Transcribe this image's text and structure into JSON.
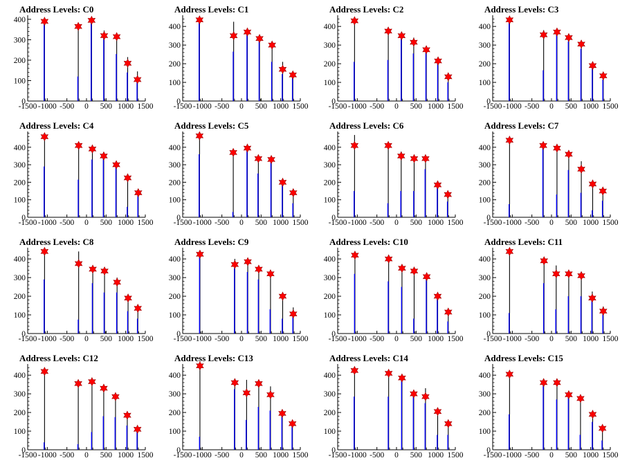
{
  "chart_data": [
    {
      "title": "Address Levels: C0",
      "type": "histogram",
      "xlim": [
        -1500,
        1500
      ],
      "ylim": [
        0,
        420
      ],
      "yticks": [
        0,
        100,
        200,
        300,
        400
      ],
      "xticks": [
        -1500,
        -1000,
        -500,
        0,
        500,
        1000,
        1500
      ],
      "peaks": [
        {
          "x": -1070,
          "y": 390,
          "black": 405,
          "blue": 395
        },
        {
          "x": -210,
          "y": 365,
          "black": 370,
          "blue": 120
        },
        {
          "x": 130,
          "y": 395,
          "black": 400,
          "blue": 385
        },
        {
          "x": 450,
          "y": 320,
          "black": 345,
          "blue": 320
        },
        {
          "x": 770,
          "y": 315,
          "black": 325,
          "blue": 230
        },
        {
          "x": 1050,
          "y": 185,
          "black": 215,
          "blue": 140
        },
        {
          "x": 1300,
          "y": 105,
          "black": 145,
          "blue": 120
        }
      ]
    },
    {
      "title": "Address Levels: C1",
      "type": "histogram",
      "xlim": [
        -1500,
        1500
      ],
      "ylim": [
        0,
        460
      ],
      "yticks": [
        0,
        100,
        200,
        300,
        400
      ],
      "xticks": [
        -1500,
        -1000,
        -500,
        0,
        500,
        1000,
        1500
      ],
      "peaks": [
        {
          "x": -1070,
          "y": 435,
          "black": 440,
          "blue": 435
        },
        {
          "x": -200,
          "y": 350,
          "black": 425,
          "blue": 265
        },
        {
          "x": 150,
          "y": 370,
          "black": 375,
          "blue": 365
        },
        {
          "x": 460,
          "y": 335,
          "black": 340,
          "blue": 320
        },
        {
          "x": 780,
          "y": 300,
          "black": 310,
          "blue": 210
        },
        {
          "x": 1050,
          "y": 170,
          "black": 210,
          "blue": 145
        },
        {
          "x": 1310,
          "y": 140,
          "black": 155,
          "blue": 140
        }
      ]
    },
    {
      "title": "Address Levels: C2",
      "type": "histogram",
      "xlim": [
        -1500,
        1500
      ],
      "ylim": [
        0,
        460
      ],
      "yticks": [
        0,
        100,
        200,
        300,
        400
      ],
      "xticks": [
        -1500,
        -1000,
        -500,
        0,
        500,
        1000,
        1500
      ],
      "peaks": [
        {
          "x": -1070,
          "y": 430,
          "black": 435,
          "blue": 210
        },
        {
          "x": -210,
          "y": 375,
          "black": 385,
          "blue": 220
        },
        {
          "x": 130,
          "y": 350,
          "black": 370,
          "blue": 340
        },
        {
          "x": 440,
          "y": 315,
          "black": 340,
          "blue": 255
        },
        {
          "x": 760,
          "y": 275,
          "black": 295,
          "blue": 260
        },
        {
          "x": 1060,
          "y": 215,
          "black": 220,
          "blue": 205
        },
        {
          "x": 1320,
          "y": 130,
          "black": 135,
          "blue": 100
        }
      ]
    },
    {
      "title": "Address Levels: C3",
      "type": "histogram",
      "xlim": [
        -1500,
        1500
      ],
      "ylim": [
        0,
        460
      ],
      "yticks": [
        0,
        100,
        200,
        300,
        400
      ],
      "xticks": [
        -1500,
        -1000,
        -500,
        0,
        500,
        1000,
        1500
      ],
      "peaks": [
        {
          "x": -1070,
          "y": 435,
          "black": 440,
          "blue": 430
        },
        {
          "x": -200,
          "y": 355,
          "black": 380,
          "blue": 165
        },
        {
          "x": 140,
          "y": 370,
          "black": 380,
          "blue": 360
        },
        {
          "x": 440,
          "y": 340,
          "black": 345,
          "blue": 320
        },
        {
          "x": 760,
          "y": 305,
          "black": 320,
          "blue": 280
        },
        {
          "x": 1050,
          "y": 190,
          "black": 195,
          "blue": 185
        },
        {
          "x": 1320,
          "y": 135,
          "black": 140,
          "blue": 115
        }
      ]
    },
    {
      "title": "Address Levels: C4",
      "type": "histogram",
      "xlim": [
        -1500,
        1500
      ],
      "ylim": [
        0,
        490
      ],
      "yticks": [
        0,
        100,
        200,
        300,
        400
      ],
      "xticks": [
        -1500,
        -1000,
        -500,
        0,
        500,
        1000,
        1500
      ],
      "peaks": [
        {
          "x": -1070,
          "y": 460,
          "black": 470,
          "blue": 290
        },
        {
          "x": -200,
          "y": 410,
          "black": 420,
          "blue": 215
        },
        {
          "x": 150,
          "y": 390,
          "black": 395,
          "blue": 330
        },
        {
          "x": 440,
          "y": 350,
          "black": 360,
          "blue": 345
        },
        {
          "x": 760,
          "y": 300,
          "black": 320,
          "blue": 290
        },
        {
          "x": 1050,
          "y": 225,
          "black": 230,
          "blue": 60
        },
        {
          "x": 1320,
          "y": 140,
          "black": 145,
          "blue": 130
        }
      ]
    },
    {
      "title": "Address Levels: C5",
      "type": "histogram",
      "xlim": [
        -1500,
        1500
      ],
      "ylim": [
        0,
        490
      ],
      "yticks": [
        0,
        100,
        200,
        300,
        400
      ],
      "xticks": [
        -1500,
        -1000,
        -500,
        0,
        500,
        1000,
        1500
      ],
      "peaks": [
        {
          "x": -1070,
          "y": 465,
          "black": 475,
          "blue": 360
        },
        {
          "x": -210,
          "y": 370,
          "black": 380,
          "blue": 30
        },
        {
          "x": 150,
          "y": 395,
          "black": 400,
          "blue": 390
        },
        {
          "x": 430,
          "y": 335,
          "black": 355,
          "blue": 250
        },
        {
          "x": 760,
          "y": 330,
          "black": 335,
          "blue": 325
        },
        {
          "x": 1050,
          "y": 200,
          "black": 205,
          "blue": 190
        },
        {
          "x": 1320,
          "y": 140,
          "black": 145,
          "blue": 80
        }
      ]
    },
    {
      "title": "Address Levels: C6",
      "type": "histogram",
      "xlim": [
        -1500,
        1500
      ],
      "ylim": [
        0,
        490
      ],
      "yticks": [
        0,
        100,
        200,
        300,
        400
      ],
      "xticks": [
        -1500,
        -1000,
        -500,
        0,
        500,
        1000,
        1500
      ],
      "peaks": [
        {
          "x": -1070,
          "y": 410,
          "black": 470,
          "blue": 150
        },
        {
          "x": -210,
          "y": 410,
          "black": 415,
          "blue": 80
        },
        {
          "x": 120,
          "y": 350,
          "black": 375,
          "blue": 150
        },
        {
          "x": 450,
          "y": 335,
          "black": 345,
          "blue": 150
        },
        {
          "x": 740,
          "y": 335,
          "black": 345,
          "blue": 275
        },
        {
          "x": 1050,
          "y": 185,
          "black": 190,
          "blue": 175
        },
        {
          "x": 1310,
          "y": 130,
          "black": 135,
          "blue": 90
        }
      ]
    },
    {
      "title": "Address Levels: C7",
      "type": "histogram",
      "xlim": [
        -1500,
        1500
      ],
      "ylim": [
        0,
        490
      ],
      "yticks": [
        0,
        100,
        200,
        300,
        400
      ],
      "xticks": [
        -1500,
        -1000,
        -500,
        0,
        500,
        1000,
        1500
      ],
      "peaks": [
        {
          "x": -1070,
          "y": 440,
          "black": 445,
          "blue": 75
        },
        {
          "x": -210,
          "y": 410,
          "black": 415,
          "blue": 405
        },
        {
          "x": 140,
          "y": 395,
          "black": 400,
          "blue": 130
        },
        {
          "x": 440,
          "y": 360,
          "black": 365,
          "blue": 270
        },
        {
          "x": 760,
          "y": 275,
          "black": 320,
          "blue": 140
        },
        {
          "x": 1050,
          "y": 190,
          "black": 200,
          "blue": 40
        },
        {
          "x": 1310,
          "y": 150,
          "black": 160,
          "blue": 95
        }
      ]
    },
    {
      "title": "Address Levels: C8",
      "type": "histogram",
      "xlim": [
        -1500,
        1500
      ],
      "ylim": [
        0,
        460
      ],
      "yticks": [
        0,
        100,
        200,
        300,
        400
      ],
      "xticks": [
        -1500,
        -1000,
        -500,
        0,
        500,
        1000,
        1500
      ],
      "peaks": [
        {
          "x": -1070,
          "y": 440,
          "black": 450,
          "blue": 290
        },
        {
          "x": -200,
          "y": 375,
          "black": 440,
          "blue": 75
        },
        {
          "x": 160,
          "y": 345,
          "black": 350,
          "blue": 270
        },
        {
          "x": 460,
          "y": 335,
          "black": 340,
          "blue": 220
        },
        {
          "x": 780,
          "y": 275,
          "black": 300,
          "blue": 220
        },
        {
          "x": 1060,
          "y": 190,
          "black": 195,
          "blue": 120
        },
        {
          "x": 1310,
          "y": 135,
          "black": 140,
          "blue": 80
        }
      ]
    },
    {
      "title": "Address Levels: C9",
      "type": "histogram",
      "xlim": [
        -1500,
        1500
      ],
      "ylim": [
        0,
        460
      ],
      "yticks": [
        0,
        100,
        200,
        300,
        400
      ],
      "xticks": [
        -1500,
        -1000,
        -500,
        0,
        500,
        1000,
        1500
      ],
      "peaks": [
        {
          "x": -1060,
          "y": 425,
          "black": 430,
          "blue": 420
        },
        {
          "x": -170,
          "y": 370,
          "black": 400,
          "blue": 350
        },
        {
          "x": 160,
          "y": 385,
          "black": 395,
          "blue": 330
        },
        {
          "x": 440,
          "y": 345,
          "black": 355,
          "blue": 290
        },
        {
          "x": 740,
          "y": 320,
          "black": 330,
          "blue": 130
        },
        {
          "x": 1050,
          "y": 200,
          "black": 205,
          "blue": 80
        },
        {
          "x": 1320,
          "y": 105,
          "black": 140,
          "blue": 110
        }
      ]
    },
    {
      "title": "Address Levels: C10",
      "type": "histogram",
      "xlim": [
        -1500,
        1500
      ],
      "ylim": [
        0,
        460
      ],
      "yticks": [
        0,
        100,
        200,
        300,
        400
      ],
      "xticks": [
        -1500,
        -1000,
        -500,
        0,
        500,
        1000,
        1500
      ],
      "peaks": [
        {
          "x": -1060,
          "y": 420,
          "black": 430,
          "blue": 320
        },
        {
          "x": -200,
          "y": 400,
          "black": 405,
          "blue": 280
        },
        {
          "x": 140,
          "y": 350,
          "black": 360,
          "blue": 250
        },
        {
          "x": 450,
          "y": 335,
          "black": 345,
          "blue": 80
        },
        {
          "x": 770,
          "y": 305,
          "black": 310,
          "blue": 300
        },
        {
          "x": 1050,
          "y": 200,
          "black": 205,
          "blue": 195
        },
        {
          "x": 1320,
          "y": 115,
          "black": 120,
          "blue": 65
        }
      ]
    },
    {
      "title": "Address Levels: C11",
      "type": "histogram",
      "xlim": [
        -1500,
        1500
      ],
      "ylim": [
        0,
        460
      ],
      "yticks": [
        0,
        100,
        200,
        300,
        400
      ],
      "xticks": [
        -1500,
        -1000,
        -500,
        0,
        500,
        1000,
        1500
      ],
      "peaks": [
        {
          "x": -1070,
          "y": 440,
          "black": 450,
          "blue": 110
        },
        {
          "x": -190,
          "y": 390,
          "black": 395,
          "blue": 270
        },
        {
          "x": 120,
          "y": 320,
          "black": 365,
          "blue": 130
        },
        {
          "x": 440,
          "y": 320,
          "black": 325,
          "blue": 200
        },
        {
          "x": 760,
          "y": 310,
          "black": 320,
          "blue": 200
        },
        {
          "x": 1040,
          "y": 190,
          "black": 225,
          "blue": 175
        },
        {
          "x": 1320,
          "y": 120,
          "black": 145,
          "blue": 135
        }
      ]
    },
    {
      "title": "Address Levels: C12",
      "type": "histogram",
      "xlim": [
        -1500,
        1500
      ],
      "ylim": [
        0,
        460
      ],
      "yticks": [
        0,
        100,
        200,
        300,
        400
      ],
      "xticks": [
        -1500,
        -1000,
        -500,
        0,
        500,
        1000,
        1500
      ],
      "peaks": [
        {
          "x": -1070,
          "y": 420,
          "black": 425,
          "blue": 40
        },
        {
          "x": -210,
          "y": 355,
          "black": 365,
          "blue": 30
        },
        {
          "x": 140,
          "y": 365,
          "black": 370,
          "blue": 95
        },
        {
          "x": 440,
          "y": 330,
          "black": 340,
          "blue": 180
        },
        {
          "x": 740,
          "y": 285,
          "black": 290,
          "blue": 175
        },
        {
          "x": 1040,
          "y": 185,
          "black": 190,
          "blue": 130
        },
        {
          "x": 1300,
          "y": 110,
          "black": 115,
          "blue": 100
        }
      ]
    },
    {
      "title": "Address Levels: C13",
      "type": "histogram",
      "xlim": [
        -1500,
        1500
      ],
      "ylim": [
        0,
        460
      ],
      "yticks": [
        0,
        100,
        200,
        300,
        400
      ],
      "xticks": [
        -1500,
        -1000,
        -500,
        0,
        500,
        1000,
        1500
      ],
      "peaks": [
        {
          "x": -1060,
          "y": 450,
          "black": 455,
          "blue": 70
        },
        {
          "x": -170,
          "y": 360,
          "black": 370,
          "blue": 325
        },
        {
          "x": 130,
          "y": 305,
          "black": 375,
          "blue": 160
        },
        {
          "x": 440,
          "y": 355,
          "black": 360,
          "blue": 230
        },
        {
          "x": 740,
          "y": 295,
          "black": 340,
          "blue": 210
        },
        {
          "x": 1040,
          "y": 195,
          "black": 200,
          "blue": 190
        },
        {
          "x": 1300,
          "y": 140,
          "black": 145,
          "blue": 130
        }
      ]
    },
    {
      "title": "Address Levels: C14",
      "type": "histogram",
      "xlim": [
        -1500,
        1500
      ],
      "ylim": [
        0,
        460
      ],
      "yticks": [
        0,
        100,
        200,
        300,
        400
      ],
      "xticks": [
        -1500,
        -1000,
        -500,
        0,
        500,
        1000,
        1500
      ],
      "peaks": [
        {
          "x": -1070,
          "y": 425,
          "black": 430,
          "blue": 285
        },
        {
          "x": -200,
          "y": 410,
          "black": 415,
          "blue": 285
        },
        {
          "x": 140,
          "y": 385,
          "black": 395,
          "blue": 370
        },
        {
          "x": 440,
          "y": 300,
          "black": 310,
          "blue": 295
        },
        {
          "x": 740,
          "y": 285,
          "black": 330,
          "blue": 250
        },
        {
          "x": 1050,
          "y": 205,
          "black": 210,
          "blue": 80
        },
        {
          "x": 1320,
          "y": 140,
          "black": 145,
          "blue": 80
        }
      ]
    },
    {
      "title": "Address Levels: C15",
      "type": "histogram",
      "xlim": [
        -1500,
        1500
      ],
      "ylim": [
        0,
        460
      ],
      "yticks": [
        0,
        100,
        200,
        300,
        400
      ],
      "xticks": [
        -1500,
        -1000,
        -500,
        0,
        500,
        1000,
        1500
      ],
      "peaks": [
        {
          "x": -1070,
          "y": 405,
          "black": 410,
          "blue": 190
        },
        {
          "x": -200,
          "y": 360,
          "black": 365,
          "blue": 355
        },
        {
          "x": 140,
          "y": 360,
          "black": 365,
          "blue": 270
        },
        {
          "x": 440,
          "y": 295,
          "black": 300,
          "blue": 290
        },
        {
          "x": 740,
          "y": 275,
          "black": 285,
          "blue": 80
        },
        {
          "x": 1050,
          "y": 190,
          "black": 200,
          "blue": 150
        },
        {
          "x": 1300,
          "y": 115,
          "black": 120,
          "blue": 50
        }
      ]
    }
  ],
  "colors": {
    "axis": "#000000",
    "primary_hist": "#000000",
    "secondary_hist": "#0000ff",
    "marker_fill": "#ff0000",
    "marker_stroke": "#990000"
  }
}
